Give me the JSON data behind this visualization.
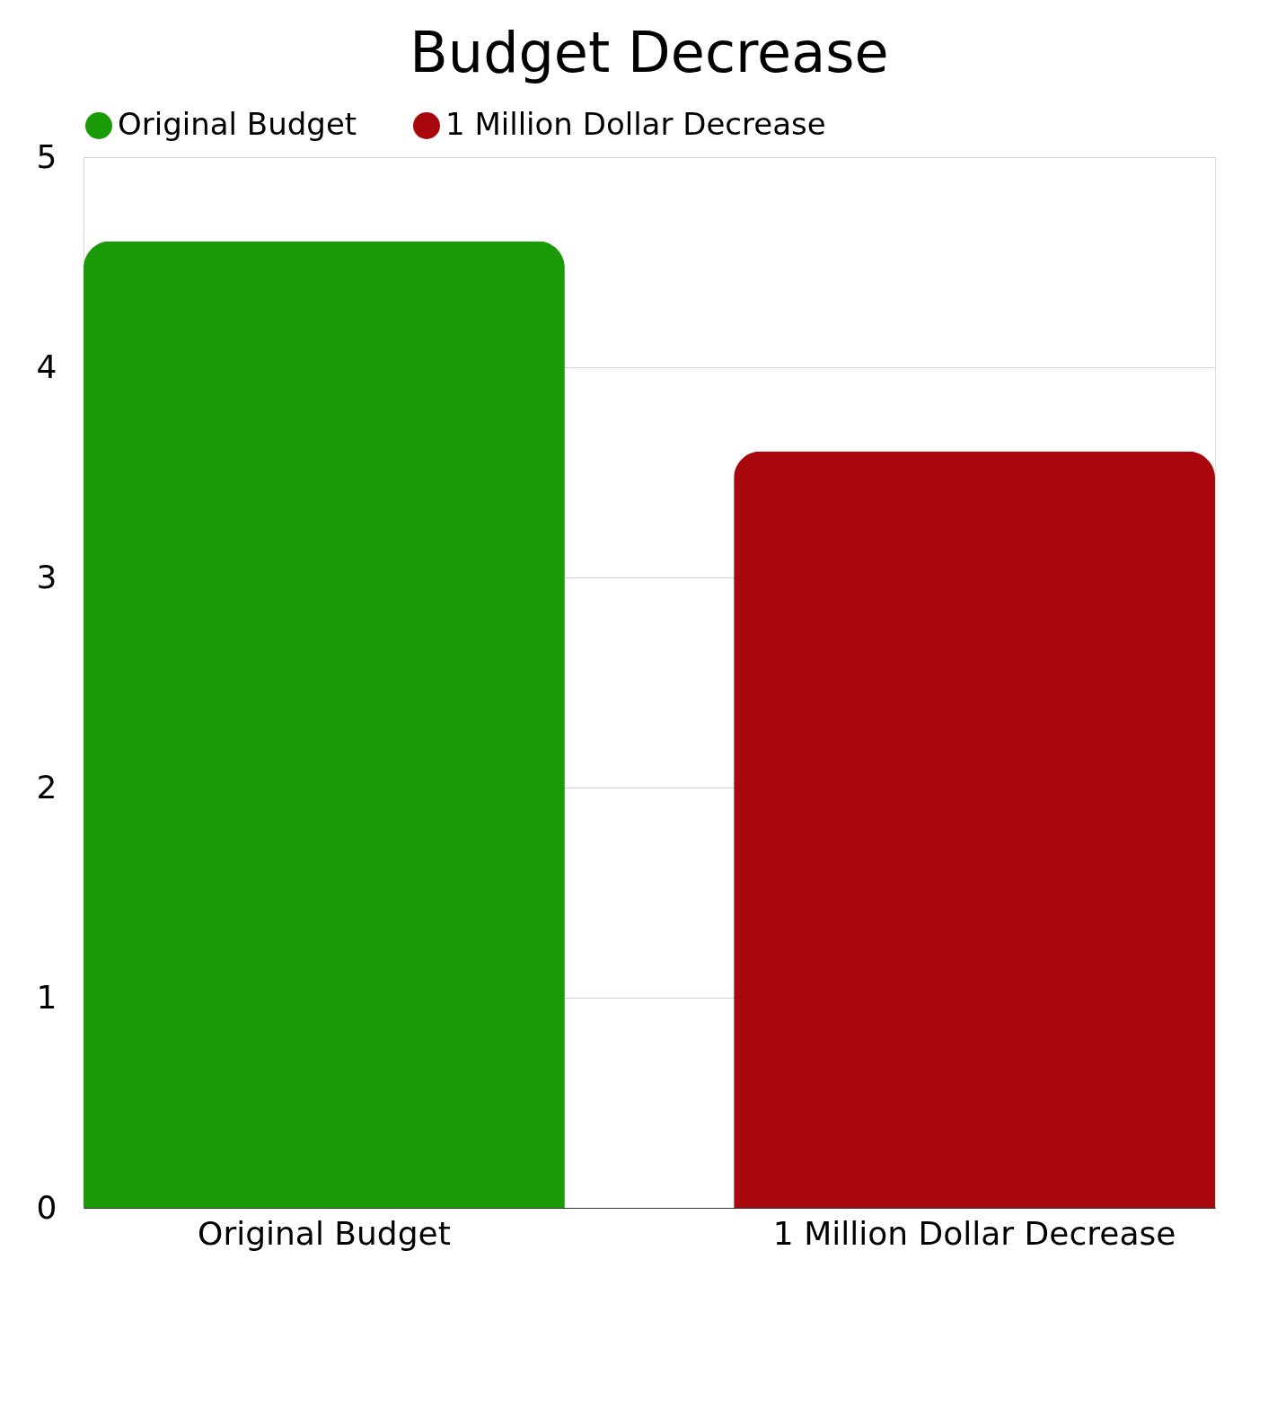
{
  "chart_data": {
    "type": "bar",
    "title": "Budget Decrease",
    "categories": [
      "Original Budget",
      "1 Million Dollar Decrease"
    ],
    "series": [
      {
        "name": "Original Budget",
        "color": "#1b9a07",
        "values": [
          4.6,
          null
        ]
      },
      {
        "name": "1 Million Dollar Decrease",
        "color": "#a8070e",
        "values": [
          null,
          3.6
        ]
      }
    ],
    "ylim": [
      0,
      5
    ],
    "yticks": [
      0,
      1,
      2,
      3,
      4,
      5
    ],
    "grid": "y",
    "legend": "top"
  }
}
